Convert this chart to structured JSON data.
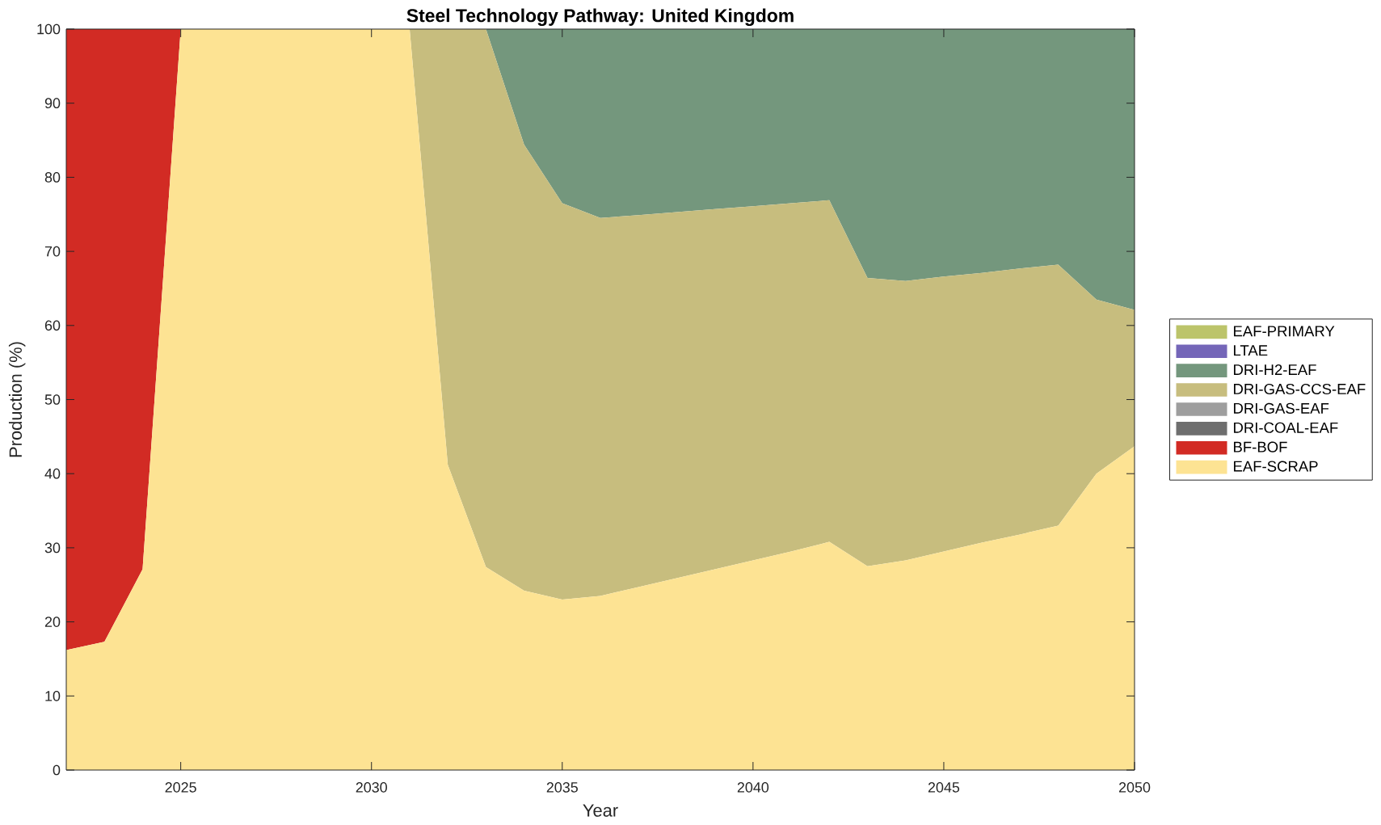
{
  "chart_data": {
    "type": "area",
    "title": "Steel Technology Pathway: United Kingdom",
    "xlabel": "Year",
    "ylabel": "Production (%)",
    "x": [
      2022,
      2023,
      2024,
      2025,
      2026,
      2027,
      2028,
      2029,
      2030,
      2031,
      2032,
      2033,
      2034,
      2035,
      2036,
      2037,
      2038,
      2039,
      2040,
      2041,
      2042,
      2043,
      2044,
      2045,
      2046,
      2047,
      2048,
      2049,
      2050
    ],
    "series": [
      {
        "name": "EAF-SCRAP",
        "color": "#fde393",
        "values": [
          16.2,
          17.3,
          27.1,
          100,
          100,
          100,
          100,
          100,
          100,
          100,
          41.2,
          27.4,
          24.2,
          23.0,
          23.5,
          24.7,
          25.9,
          27.1,
          28.3,
          29.5,
          30.8,
          27.5,
          28.3,
          29.5,
          30.7,
          31.8,
          33.0,
          40.0,
          43.7
        ]
      },
      {
        "name": "BF-BOF",
        "color": "#d22b24",
        "values": [
          83.8,
          82.7,
          72.9,
          0,
          0,
          0,
          0,
          0,
          0,
          0,
          0,
          0,
          0,
          0,
          0,
          0,
          0,
          0,
          0,
          0,
          0,
          0,
          0,
          0,
          0,
          0,
          0,
          0,
          0
        ]
      },
      {
        "name": "DRI-COAL-EAF",
        "color": "#6e6e6e",
        "values": [
          null,
          null,
          null,
          null,
          null,
          null,
          null,
          null,
          null,
          null,
          null,
          null,
          null,
          null,
          null,
          null,
          null,
          null,
          null,
          null,
          null,
          null,
          null,
          null,
          null,
          null,
          null,
          null,
          null
        ]
      },
      {
        "name": "DRI-GAS-EAF",
        "color": "#9e9e9e",
        "values": [
          null,
          null,
          null,
          null,
          null,
          null,
          null,
          null,
          null,
          null,
          null,
          null,
          null,
          null,
          null,
          null,
          null,
          null,
          null,
          null,
          null,
          null,
          null,
          null,
          null,
          null,
          null,
          null,
          null
        ]
      },
      {
        "name": "DRI-GAS-CCS-EAF",
        "color": "#c7bd7e",
        "values": [
          0,
          0,
          0,
          0,
          0,
          0,
          0,
          0,
          0,
          0,
          58.8,
          72.6,
          60.2,
          53.5,
          51.0,
          50.2,
          49.4,
          48.6,
          47.8,
          47.0,
          46.1,
          38.9,
          37.7,
          37.1,
          36.4,
          35.9,
          35.2,
          23.5,
          18.4
        ]
      },
      {
        "name": "DRI-H2-EAF",
        "color": "#74977d",
        "values": [
          0,
          0,
          0,
          0,
          0,
          0,
          0,
          0,
          0,
          0,
          0,
          0,
          15.6,
          23.5,
          25.5,
          25.1,
          24.7,
          24.3,
          23.9,
          23.5,
          23.1,
          33.6,
          34.0,
          33.4,
          32.9,
          32.3,
          31.8,
          36.5,
          37.9
        ]
      },
      {
        "name": "LTAE",
        "color": "#7466b8",
        "values": [
          null,
          null,
          null,
          null,
          null,
          null,
          null,
          null,
          null,
          null,
          null,
          null,
          null,
          null,
          null,
          null,
          null,
          null,
          null,
          null,
          null,
          null,
          null,
          null,
          null,
          null,
          null,
          null,
          null
        ]
      },
      {
        "name": "EAF-PRIMARY",
        "color": "#bcc46a",
        "values": [
          null,
          null,
          null,
          null,
          null,
          null,
          null,
          null,
          null,
          null,
          null,
          null,
          null,
          null,
          null,
          null,
          null,
          null,
          null,
          null,
          null,
          null,
          null,
          null,
          null,
          null,
          null,
          null,
          null
        ]
      }
    ],
    "stacked": true,
    "xlim": [
      2022,
      2050
    ],
    "ylim": [
      0,
      100
    ],
    "xticks": [
      2025,
      2030,
      2035,
      2040,
      2045,
      2050
    ],
    "yticks": [
      0,
      10,
      20,
      30,
      40,
      50,
      60,
      70,
      80,
      90,
      100
    ],
    "legend": "right"
  }
}
